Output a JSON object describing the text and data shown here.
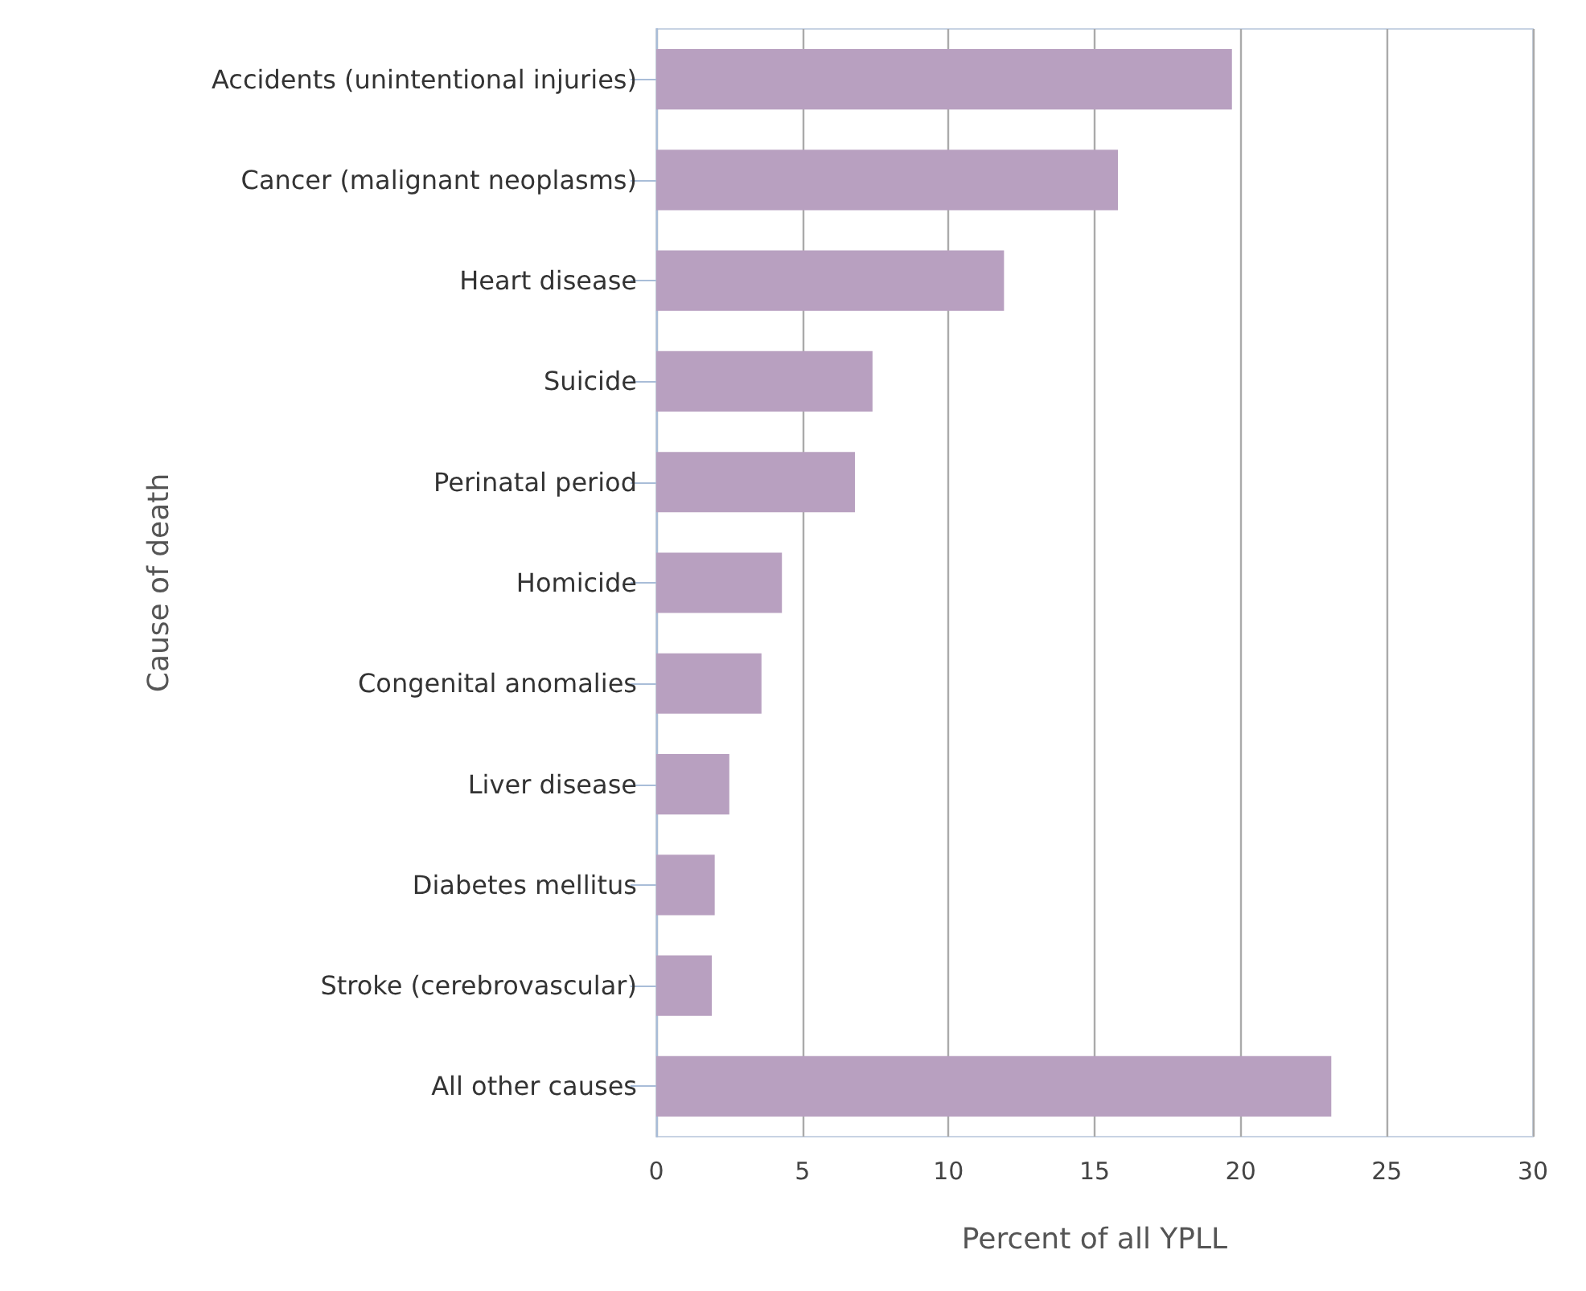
{
  "chart_data": {
    "type": "bar",
    "orientation": "horizontal",
    "xlabel": "Percent of all YPLL",
    "ylabel": "Cause of death",
    "categories": [
      "Accidents (unintentional injuries)",
      "Cancer (malignant neoplasms)",
      "Heart disease",
      "Suicide",
      "Perinatal period",
      "Homicide",
      "Congenital anomalies",
      "Liver disease",
      "Diabetes mellitus",
      "Stroke (cerebrovascular)",
      "All other causes"
    ],
    "values": [
      19.7,
      15.8,
      11.9,
      7.4,
      6.8,
      4.3,
      3.6,
      2.5,
      2.0,
      1.9,
      23.1
    ],
    "color": "#b8a0c0",
    "xlim": [
      0,
      30
    ],
    "xticks": [
      0,
      5,
      10,
      15,
      20,
      25,
      30
    ],
    "grid": "x"
  }
}
